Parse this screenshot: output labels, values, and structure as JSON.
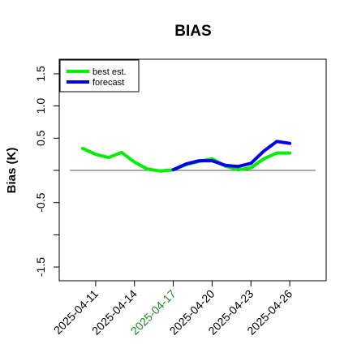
{
  "chart_data": {
    "type": "line",
    "title": "BIAS",
    "xlabel": "",
    "ylabel": "Bias (K)",
    "ylim": [
      -1.6,
      1.6
    ],
    "yticks": [
      -1.5,
      -1.0,
      -0.5,
      0.0,
      0.5,
      1.0,
      1.5
    ],
    "yticklabels": [
      "-1.5",
      "",
      "-0.5",
      "",
      "0.5",
      "1.0",
      "1.5"
    ],
    "xlim": [
      "2025-04-09",
      "2025-04-28"
    ],
    "xticks": [
      "2025-04-11",
      "2025-04-14",
      "2025-04-17",
      "2025-04-20",
      "2025-04-23",
      "2025-04-26"
    ],
    "highlighted_xtick": "2025-04-17",
    "highlight_color": "#1a8a1a",
    "reference_line_y": 0.0,
    "legend": {
      "placement": "top-left"
    },
    "series": [
      {
        "name": "best est.",
        "color": "#00ee00",
        "x": [
          "2025-04-10",
          "2025-04-11",
          "2025-04-12",
          "2025-04-13",
          "2025-04-14",
          "2025-04-15",
          "2025-04-16",
          "2025-04-17",
          "2025-04-18",
          "2025-04-19",
          "2025-04-20",
          "2025-04-21",
          "2025-04-22",
          "2025-04-23",
          "2025-04-24",
          "2025-04-25",
          "2025-04-26"
        ],
        "y": [
          0.34,
          0.25,
          0.2,
          0.28,
          0.13,
          0.02,
          -0.01,
          0.01,
          0.09,
          0.14,
          0.18,
          0.07,
          0.01,
          0.04,
          0.18,
          0.27,
          0.27
        ]
      },
      {
        "name": "forecast",
        "color": "#0000ee",
        "x": [
          "2025-04-17",
          "2025-04-18",
          "2025-04-19",
          "2025-04-20",
          "2025-04-21",
          "2025-04-22",
          "2025-04-23",
          "2025-04-24",
          "2025-04-25",
          "2025-04-26"
        ],
        "y": [
          0.01,
          0.1,
          0.15,
          0.15,
          0.08,
          0.06,
          0.11,
          0.3,
          0.45,
          0.42
        ]
      }
    ]
  }
}
